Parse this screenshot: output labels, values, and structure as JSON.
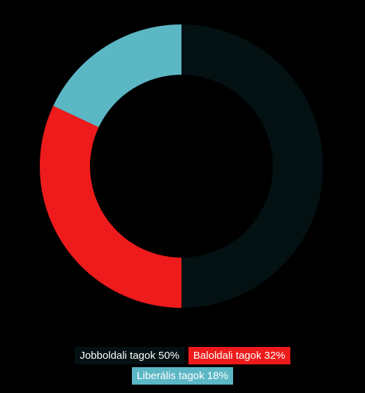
{
  "chart_data": {
    "type": "pie",
    "variant": "donut",
    "slices": [
      {
        "label": "Jobboldali tagok 50%",
        "value": 50,
        "color": "#031113"
      },
      {
        "label": "Baloldali tagok 32%",
        "value": 32,
        "color": "#ed1b1b"
      },
      {
        "label": "Liberális tagok 18%",
        "value": 18,
        "color": "#5cb7c5"
      }
    ],
    "legend_placement": "bottom",
    "start": "top",
    "direction": "clockwise"
  }
}
